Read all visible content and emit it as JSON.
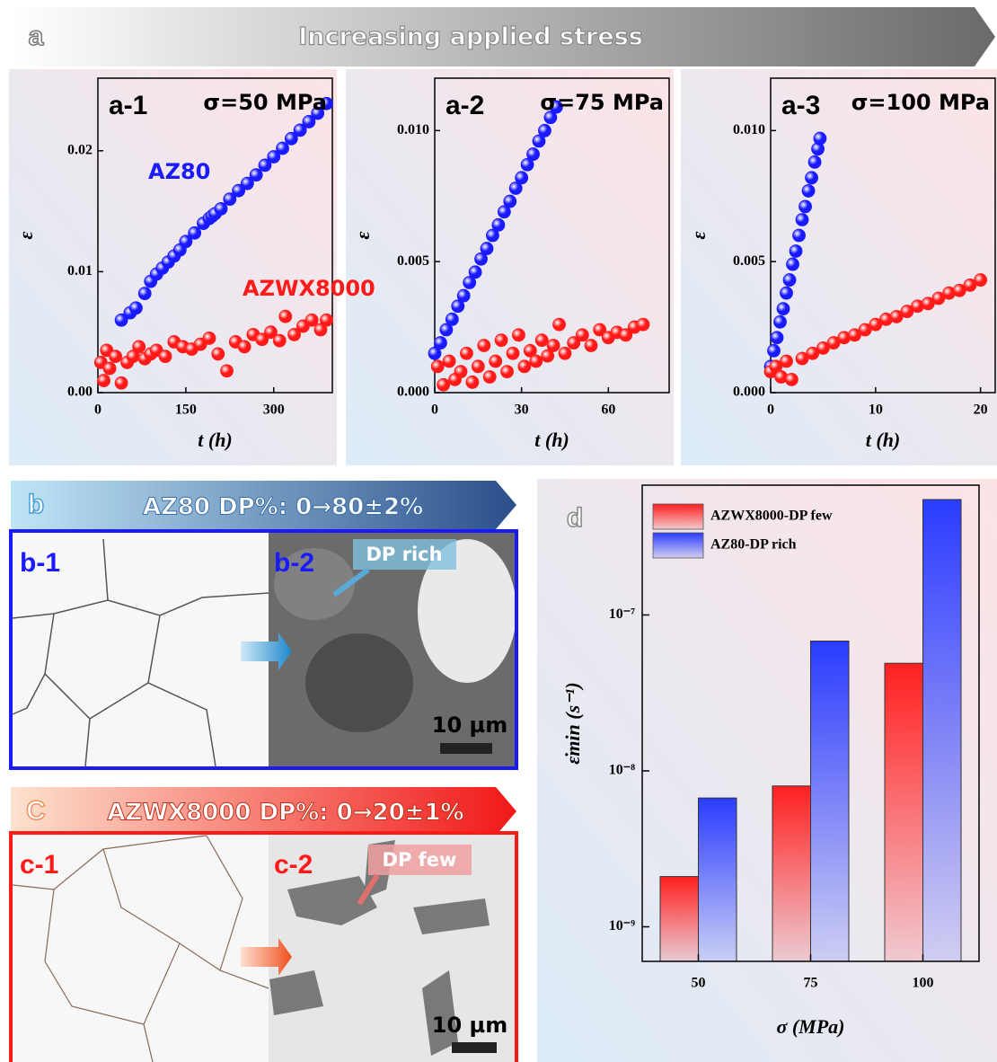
{
  "header": {
    "panel": "a",
    "title": "Increasing applied stress"
  },
  "micrographs": [
    {
      "panel": "b",
      "title": "AZ80 DP%: 0→80±2%",
      "left": "b-1",
      "right": "b-2",
      "callout": "DP rich",
      "scale": "10 µm"
    },
    {
      "panel": "C",
      "title": "AZWX8000 DP%: 0→20±1%",
      "left": "c-1",
      "right": "c-2",
      "callout": "DP few",
      "scale": "10 µm"
    }
  ],
  "chart_data": [
    {
      "type": "scatter",
      "panel_label": "a-1",
      "annotation": "σ=50 MPa",
      "x_label": "t (h)",
      "y_label": "ε",
      "xlim": [
        0,
        400
      ],
      "ylim": [
        0,
        0.026
      ],
      "xticks": [
        0,
        150,
        300
      ],
      "yticks": [
        {
          "value": 0,
          "label": "0.00"
        },
        0.01,
        0.02
      ],
      "series": [
        {
          "name": "AZ80",
          "color": "#1a1aff",
          "x": [
            40,
            55,
            65,
            80,
            90,
            100,
            110,
            120,
            130,
            140,
            150,
            165,
            180,
            190,
            195,
            200,
            210,
            225,
            240,
            255,
            270,
            285,
            300,
            315,
            330,
            345,
            360,
            375,
            390
          ],
          "values": [
            0.006,
            0.0066,
            0.007,
            0.0082,
            0.0092,
            0.0098,
            0.0103,
            0.0108,
            0.0113,
            0.0118,
            0.0125,
            0.0132,
            0.014,
            0.0144,
            0.0146,
            0.0148,
            0.0152,
            0.016,
            0.0167,
            0.0173,
            0.018,
            0.0188,
            0.0195,
            0.0202,
            0.021,
            0.0217,
            0.0224,
            0.0231,
            0.0239
          ]
        },
        {
          "name": "AZWX8000",
          "color": "#ff1a1a",
          "x": [
            5,
            10,
            15,
            20,
            30,
            40,
            50,
            60,
            70,
            80,
            90,
            100,
            115,
            130,
            145,
            160,
            175,
            190,
            205,
            220,
            235,
            250,
            265,
            280,
            295,
            310,
            320,
            335,
            350,
            365,
            380,
            390
          ],
          "values": [
            0.0025,
            0.001,
            0.0035,
            0.002,
            0.003,
            0.0008,
            0.0025,
            0.003,
            0.0038,
            0.0028,
            0.0032,
            0.0035,
            0.003,
            0.0042,
            0.0038,
            0.0036,
            0.004,
            0.0045,
            0.0032,
            0.0018,
            0.0042,
            0.0038,
            0.0048,
            0.0044,
            0.005,
            0.0043,
            0.0063,
            0.0048,
            0.0055,
            0.006,
            0.0052,
            0.006
          ]
        }
      ]
    },
    {
      "type": "scatter",
      "panel_label": "a-2",
      "annotation": "σ=75 MPa",
      "x_label": "t (h)",
      "y_label": "ε",
      "xlim": [
        0,
        81
      ],
      "ylim": [
        0,
        0.012
      ],
      "xticks": [
        0,
        30,
        60
      ],
      "yticks": [
        {
          "value": 0,
          "label": "0.000"
        },
        0.005,
        {
          "value": 0.01,
          "label": "0.010"
        }
      ],
      "series": [
        {
          "color": "#1a1aff",
          "x": [
            0,
            2,
            4,
            6,
            8,
            10,
            12,
            14,
            16,
            18,
            20,
            22,
            24,
            26,
            28,
            30,
            32,
            34,
            36,
            38,
            40,
            42
          ],
          "values": [
            0.0015,
            0.0019,
            0.0024,
            0.0028,
            0.0033,
            0.0037,
            0.0042,
            0.0046,
            0.0051,
            0.0055,
            0.006,
            0.0064,
            0.0069,
            0.0073,
            0.0078,
            0.0082,
            0.0087,
            0.0091,
            0.0096,
            0.01,
            0.0105,
            0.0109
          ]
        },
        {
          "color": "#ff1a1a",
          "x": [
            1,
            3,
            5,
            7,
            9,
            11,
            13,
            15,
            17,
            19,
            21,
            23,
            25,
            27,
            29,
            31,
            33,
            35,
            37,
            39,
            41,
            43,
            45,
            48,
            51,
            54,
            57,
            60,
            63,
            66,
            69,
            72
          ],
          "values": [
            0.001,
            0.0003,
            0.0012,
            0.0005,
            0.0008,
            0.0015,
            0.0004,
            0.001,
            0.0018,
            0.0006,
            0.0012,
            0.002,
            0.0008,
            0.0015,
            0.0022,
            0.001,
            0.0016,
            0.0012,
            0.002,
            0.0014,
            0.0018,
            0.0026,
            0.0015,
            0.0019,
            0.0022,
            0.0018,
            0.0024,
            0.0021,
            0.0023,
            0.0022,
            0.0025,
            0.0026
          ]
        }
      ]
    },
    {
      "type": "scatter",
      "panel_label": "a-3",
      "annotation": "σ=100 MPa",
      "x_label": "t (h)",
      "y_label": "ε",
      "xlim": [
        0,
        21.4
      ],
      "ylim": [
        0,
        0.012
      ],
      "xticks": [
        0,
        10,
        20
      ],
      "yticks": [
        {
          "value": 0,
          "label": "0.000"
        },
        0.005,
        {
          "value": 0.01,
          "label": "0.010"
        }
      ],
      "series": [
        {
          "color": "#1a1aff",
          "x": [
            0,
            0.3,
            0.6,
            0.9,
            1.2,
            1.5,
            1.8,
            2.1,
            2.4,
            2.7,
            3.0,
            3.3,
            3.6,
            3.9,
            4.2,
            4.5,
            4.7
          ],
          "values": [
            0.001,
            0.0016,
            0.0021,
            0.0027,
            0.0032,
            0.0038,
            0.0043,
            0.0049,
            0.0054,
            0.006,
            0.0066,
            0.0071,
            0.0077,
            0.0082,
            0.0088,
            0.0093,
            0.0097
          ]
        },
        {
          "color": "#ff1a1a",
          "x": [
            0,
            0.5,
            1,
            1.5,
            2,
            3,
            4,
            5,
            6,
            7,
            8,
            9,
            10,
            11,
            12,
            13,
            14,
            15,
            16,
            17,
            18,
            19,
            20
          ],
          "values": [
            0.0008,
            0.001,
            0.0006,
            0.0012,
            0.0005,
            0.0013,
            0.0015,
            0.0017,
            0.0019,
            0.0021,
            0.0022,
            0.0024,
            0.0026,
            0.0028,
            0.0029,
            0.0031,
            0.0033,
            0.0034,
            0.0036,
            0.0038,
            0.0039,
            0.0041,
            0.0043
          ]
        }
      ]
    },
    {
      "type": "bar",
      "panel_label": "d",
      "log_scale": true,
      "legend": "upper left",
      "x_label": "σ (MPa)",
      "y_label": "ε̇min (s⁻¹)",
      "categories": [
        "50",
        "75",
        "100"
      ],
      "ylim": [
        6e-10,
        6.8e-07
      ],
      "yticks": [
        {
          "value": 1e-09,
          "label": "10⁻⁹"
        },
        {
          "value": 1e-08,
          "label": "10⁻⁸"
        },
        {
          "value": 1e-07,
          "label": "10⁻⁷"
        }
      ],
      "series": [
        {
          "name": "AZWX8000-DP few",
          "color": "#ff2020",
          "values": [
            2.1e-09,
            8e-09,
            4.9e-08
          ]
        },
        {
          "name": "AZ80-DP rich",
          "color": "#2a3cff",
          "values": [
            6.7e-09,
            6.8e-08,
            5.5e-07
          ]
        }
      ]
    }
  ]
}
